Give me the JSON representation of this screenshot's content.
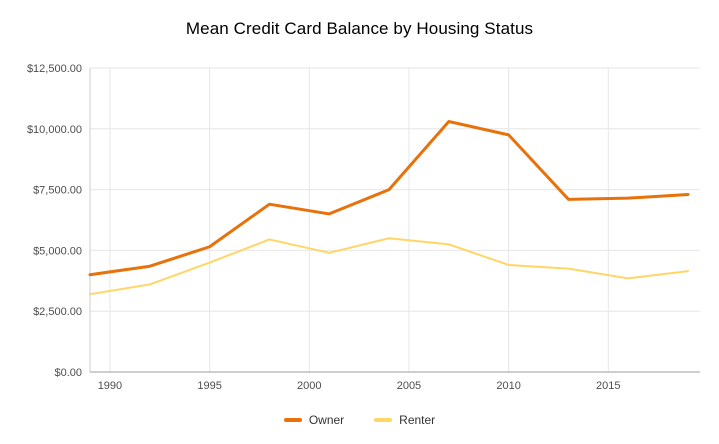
{
  "title": "Mean Credit Card Balance by Housing Status",
  "chart_data": {
    "type": "line",
    "title": "Mean Credit Card Balance by Housing Status",
    "x": [
      1989,
      1992,
      1995,
      1998,
      2001,
      2004,
      2007,
      2010,
      2013,
      2016,
      2019
    ],
    "series": [
      {
        "name": "Owner",
        "color": "#E8710A",
        "values": [
          4000,
          4350,
          5150,
          6900,
          6500,
          7500,
          10300,
          9750,
          7100,
          7150,
          7300
        ]
      },
      {
        "name": "Renter",
        "color": "#FFD666",
        "values": [
          3200,
          3600,
          4500,
          5450,
          4900,
          5500,
          5250,
          4400,
          4250,
          3850,
          4150
        ]
      }
    ],
    "xlabel": "",
    "ylabel": "",
    "xlim": [
      1989,
      2019.6
    ],
    "ylim": [
      0,
      12500
    ],
    "ytick_step": 2500,
    "ytick_labels": [
      "$0.00",
      "$2,500.00",
      "$5,000.00",
      "$7,500.00",
      "$10,000.00",
      "$12,500.00"
    ],
    "xticks": [
      1990,
      1995,
      2000,
      2005,
      2010,
      2015
    ],
    "grid": true,
    "legend_position": "bottom"
  },
  "legend": {
    "items": [
      {
        "label": "Owner"
      },
      {
        "label": "Renter"
      }
    ]
  }
}
